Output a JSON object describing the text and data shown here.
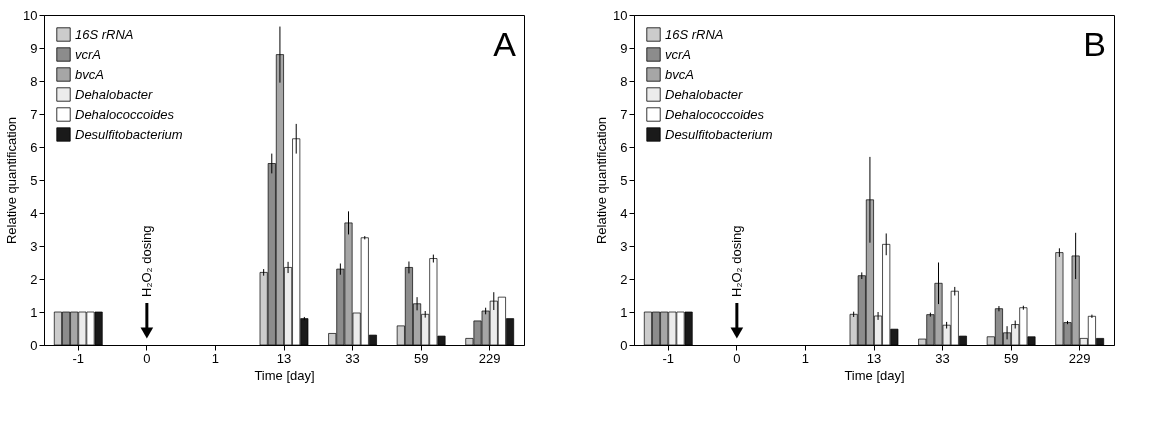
{
  "chart_data": [
    {
      "type": "bar",
      "xlabel": "Time [day]",
      "ylabel": "Relative quantification",
      "categories": [
        "-1",
        "0",
        "1",
        "13",
        "33",
        "59",
        "229"
      ],
      "ylim": [
        0,
        10
      ],
      "yticks": [
        0,
        1,
        2,
        3,
        4,
        5,
        6,
        7,
        8,
        9,
        10
      ],
      "legend": "top left",
      "grid": false,
      "annotations": [
        "H₂O₂ dosing",
        "A"
      ],
      "series": [
        {
          "name": "16S rRNA",
          "color": "#cccccc",
          "values": [
            1,
            null,
            null,
            2.2,
            0.35,
            0.58,
            0.2
          ],
          "errors": [
            null,
            null,
            null,
            0.1,
            null,
            null,
            null
          ]
        },
        {
          "name": "vcrA",
          "color": "#8c8c8c",
          "values": [
            1,
            null,
            null,
            5.5,
            2.3,
            2.35,
            0.73
          ],
          "errors": [
            null,
            null,
            null,
            0.3,
            0.17,
            0.18,
            null
          ]
        },
        {
          "name": "bvcA",
          "color": "#a6a6a6",
          "values": [
            1,
            null,
            null,
            8.8,
            3.7,
            1.25,
            1.03
          ],
          "errors": [
            null,
            null,
            null,
            0.85,
            0.35,
            0.2,
            0.1
          ]
        },
        {
          "name": "Dehalobacter",
          "color": "#ececec",
          "values": [
            1,
            null,
            null,
            2.35,
            0.97,
            0.93,
            1.33
          ],
          "errors": [
            null,
            null,
            null,
            0.17,
            null,
            0.1,
            0.27
          ]
        },
        {
          "name": "Dehalococcoides",
          "color": "#ffffff",
          "values": [
            1,
            null,
            null,
            6.25,
            3.25,
            2.62,
            1.45
          ],
          "errors": [
            null,
            null,
            null,
            0.45,
            0.05,
            0.12,
            null
          ]
        },
        {
          "name": "Desulfitobacterium",
          "color": "#1a1a1a",
          "values": [
            1,
            null,
            null,
            0.8,
            0.3,
            0.27,
            0.8
          ],
          "errors": [
            null,
            null,
            null,
            0.05,
            null,
            null,
            null
          ]
        }
      ]
    },
    {
      "type": "bar",
      "xlabel": "Time [day]",
      "ylabel": "Relative quantification",
      "categories": [
        "-1",
        "0",
        "1",
        "13",
        "33",
        "59",
        "229"
      ],
      "ylim": [
        0,
        10
      ],
      "yticks": [
        0,
        1,
        2,
        3,
        4,
        5,
        6,
        7,
        8,
        9,
        10
      ],
      "legend": "top left",
      "grid": false,
      "annotations": [
        "H₂O₂ dosing",
        "B"
      ],
      "series": [
        {
          "name": "16S rRNA",
          "color": "#cccccc",
          "values": [
            1,
            null,
            null,
            0.93,
            0.18,
            0.25,
            2.8
          ],
          "errors": [
            null,
            null,
            null,
            0.08,
            null,
            null,
            0.13
          ]
        },
        {
          "name": "vcrA",
          "color": "#8c8c8c",
          "values": [
            1,
            null,
            null,
            2.1,
            0.92,
            1.1,
            0.68
          ],
          "errors": [
            null,
            null,
            null,
            0.1,
            0.06,
            0.08,
            0.05
          ]
        },
        {
          "name": "bvcA",
          "color": "#a6a6a6",
          "values": [
            1,
            null,
            null,
            4.4,
            1.87,
            0.37,
            2.7
          ],
          "errors": [
            null,
            null,
            null,
            1.3,
            0.63,
            0.2,
            0.7
          ]
        },
        {
          "name": "Dehalobacter",
          "color": "#ececec",
          "values": [
            1,
            null,
            null,
            0.88,
            0.6,
            0.62,
            0.2
          ],
          "errors": [
            null,
            null,
            null,
            0.12,
            0.1,
            0.12,
            null
          ]
        },
        {
          "name": "Dehalococcoides",
          "color": "#ffffff",
          "values": [
            1,
            null,
            null,
            3.05,
            1.63,
            1.13,
            0.87
          ],
          "errors": [
            null,
            null,
            null,
            0.33,
            0.13,
            0.06,
            0.05
          ]
        },
        {
          "name": "Desulfitobacterium",
          "color": "#1a1a1a",
          "values": [
            1,
            null,
            null,
            0.48,
            0.27,
            0.25,
            0.2
          ],
          "errors": [
            null,
            null,
            null,
            null,
            null,
            null,
            null
          ]
        }
      ]
    }
  ]
}
